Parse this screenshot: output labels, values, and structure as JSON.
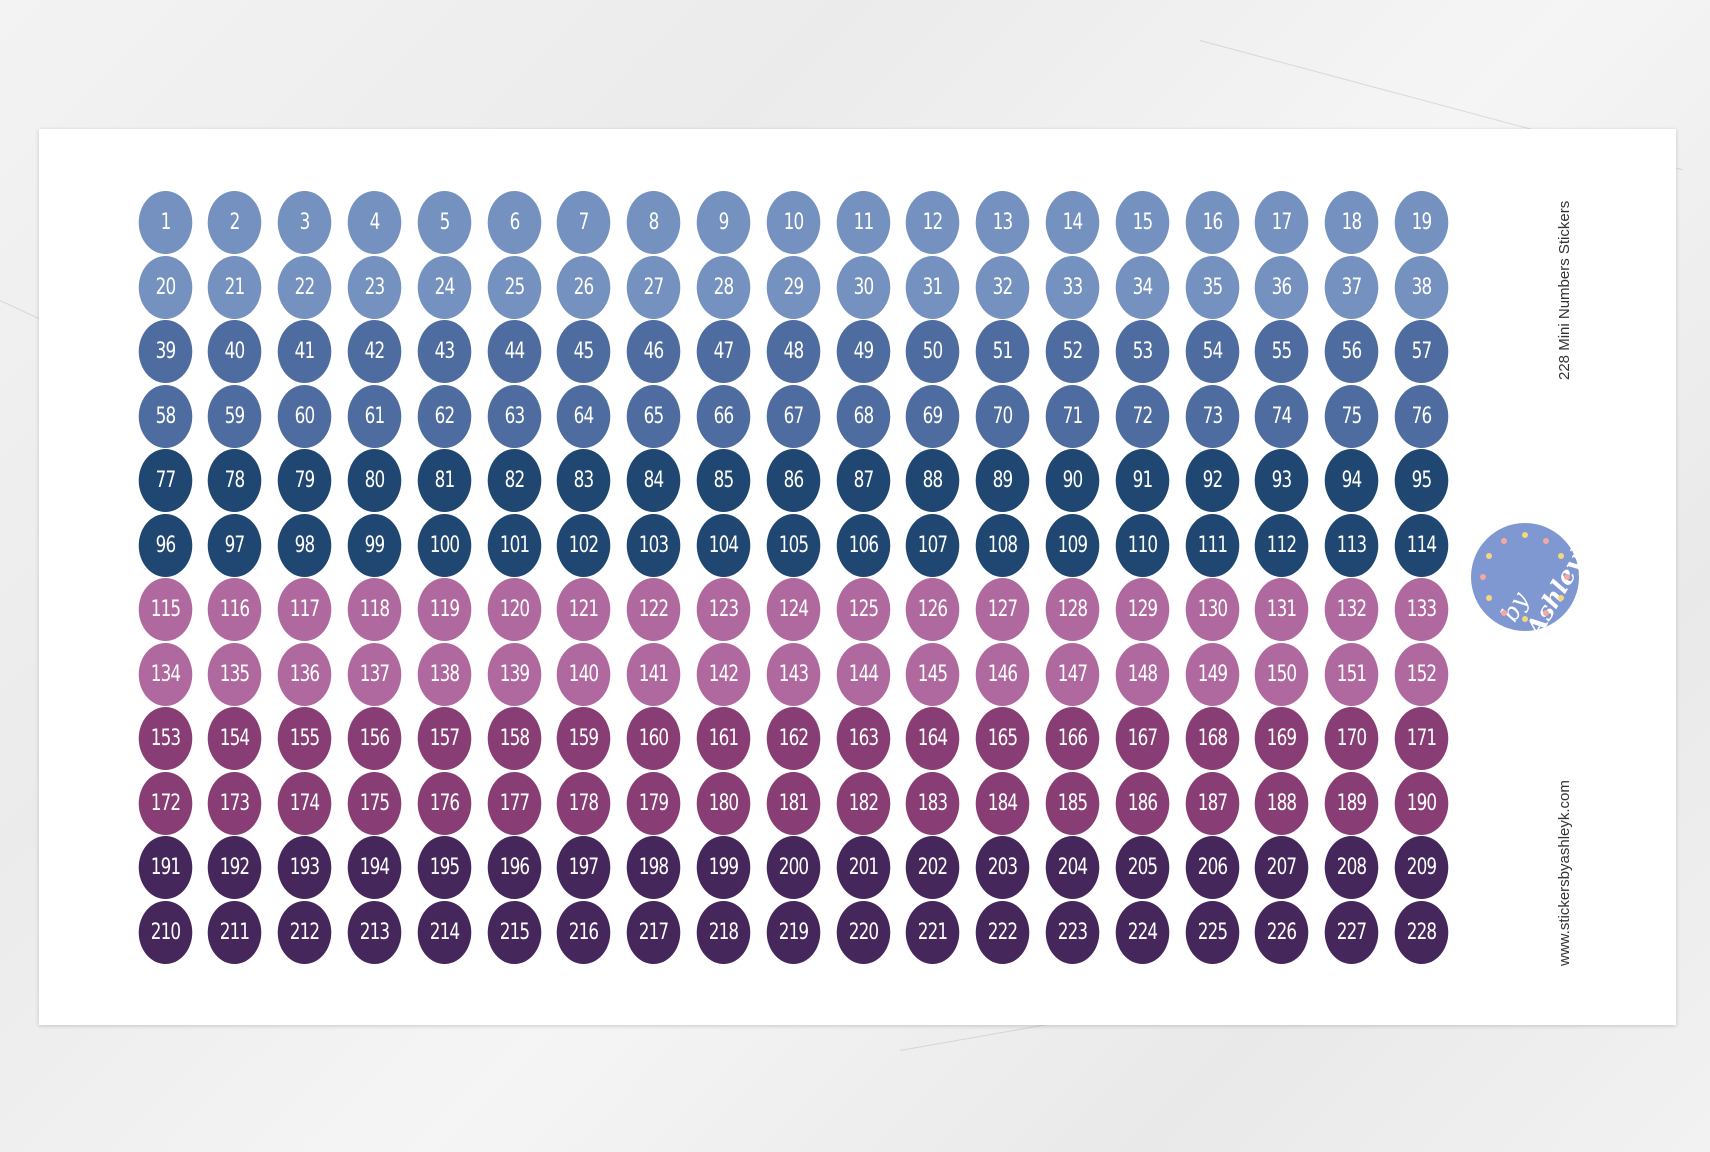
{
  "sheet": {
    "title": "228 Mini Numbers Stickers",
    "website": "www.stickersbyashleyk.com",
    "logo_text": "by AshleyK",
    "columns": 19,
    "first_number": 1,
    "last_number": 228,
    "row_colors": [
      "#7491c0",
      "#7491c0",
      "#4f6ca0",
      "#4f6ca0",
      "#1f4771",
      "#1f4771",
      "#b0699f",
      "#b0699f",
      "#883e74",
      "#883e74",
      "#45275c",
      "#45275c"
    ],
    "text_color": "#ffffff",
    "logo_color": "#7f98d2"
  }
}
